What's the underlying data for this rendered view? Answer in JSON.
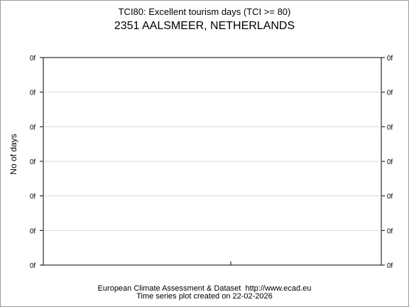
{
  "chart_data": {
    "type": "line",
    "title": "TCI80: Excellent tourism days (TCI >= 80)",
    "subtitle": "2351 AALSMEER, NETHERLANDS",
    "ylabel": "No of days",
    "xlabel": "",
    "y_tick_labels": [
      "0f",
      "0f",
      "0f",
      "0f",
      "0f",
      "0f",
      "0f"
    ],
    "grid": "horizontal",
    "series": []
  },
  "footer": {
    "source": "European Climate Assessment & Dataset  http://www.ecad.eu",
    "created": "Time series plot created on 22-02-2026"
  }
}
